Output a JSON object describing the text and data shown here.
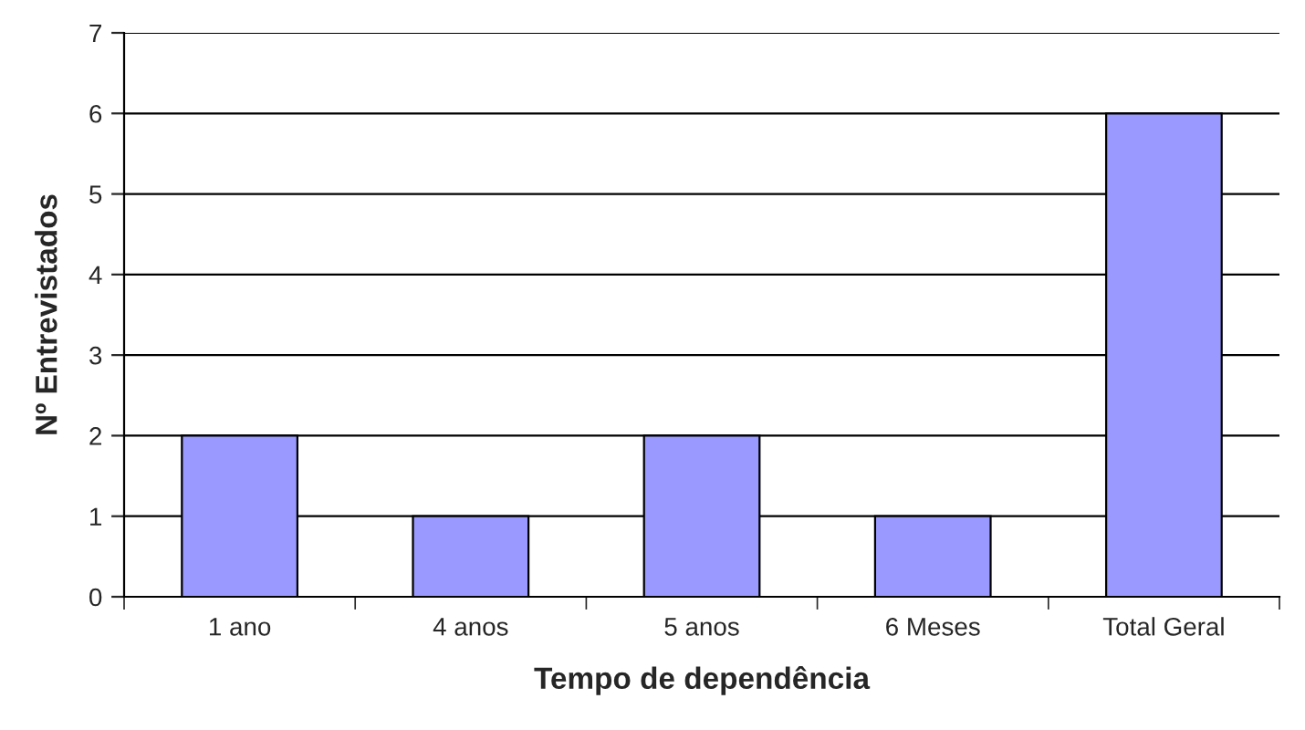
{
  "chart_data": {
    "type": "bar",
    "xlabel": "Tempo de dependência",
    "ylabel": "Nº Entrevistados",
    "categories": [
      "1 ano",
      "4 anos",
      "5 anos",
      "6 Meses",
      "Total Geral"
    ],
    "values": [
      2,
      1,
      2,
      1,
      6
    ],
    "color": "#9999ff",
    "ylim": [
      0,
      7
    ],
    "yticks": [
      0,
      1,
      2,
      3,
      4,
      5,
      6,
      7
    ],
    "grid": "y",
    "legend": false
  }
}
